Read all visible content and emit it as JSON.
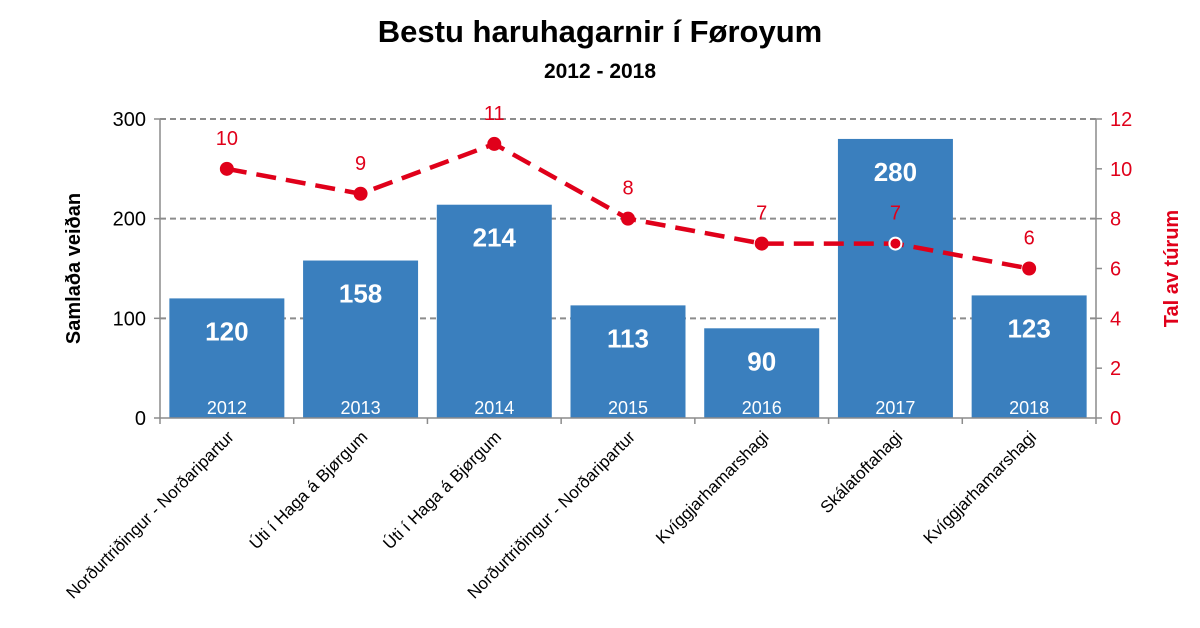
{
  "chart_data": {
    "type": "bar",
    "title": "Bestu haruhagarnir í Føroyum",
    "subtitle": "2012 - 2018",
    "categories": [
      "Norðurtriðingur - Norðaripartur",
      "Úti í Haga á Bjørgum",
      "Úti í Haga á Bjørgum",
      "Norðurtriðingur - Norðaripartur",
      "Kvíggjarhamarshagi",
      "Skálatoftahagi",
      "Kvíggjarhamarshagi"
    ],
    "years": [
      "2012",
      "2013",
      "2014",
      "2015",
      "2016",
      "2017",
      "2018"
    ],
    "series": [
      {
        "values": [
          120,
          158,
          214,
          113,
          90,
          280,
          123
        ],
        "axis": "left",
        "type": "bar",
        "color": "#3a7fbe"
      },
      {
        "values": [
          10,
          9,
          11,
          8,
          7,
          7,
          6
        ],
        "axis": "right",
        "type": "line",
        "style": "dashed",
        "color": "#e0001a"
      }
    ],
    "ylabel": "Samlaða veiðan",
    "ylabel_right": "Tal av túrum",
    "ylim": [
      0,
      300
    ],
    "ylim_right": [
      0,
      12
    ],
    "yticks": [
      "0",
      "100",
      "200",
      "300"
    ],
    "yticks_right": [
      "0",
      "2",
      "4",
      "6",
      "8",
      "10",
      "12"
    ],
    "grid": "dashed horizontal"
  }
}
